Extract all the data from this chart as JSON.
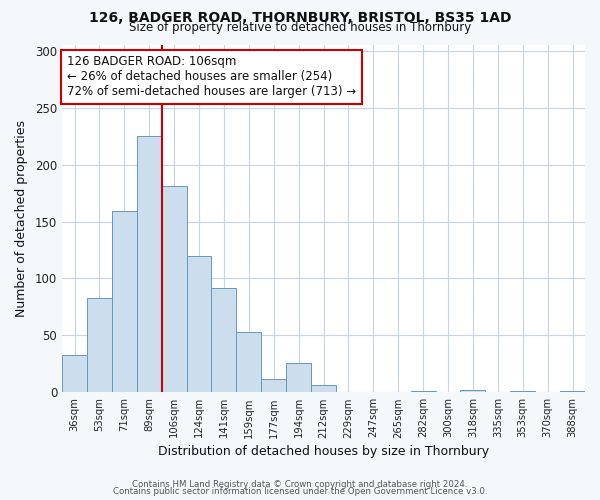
{
  "title": "126, BADGER ROAD, THORNBURY, BRISTOL, BS35 1AD",
  "subtitle": "Size of property relative to detached houses in Thornbury",
  "xlabel": "Distribution of detached houses by size in Thornbury",
  "ylabel": "Number of detached properties",
  "bin_labels": [
    "36sqm",
    "53sqm",
    "71sqm",
    "89sqm",
    "106sqm",
    "124sqm",
    "141sqm",
    "159sqm",
    "177sqm",
    "194sqm",
    "212sqm",
    "229sqm",
    "247sqm",
    "265sqm",
    "282sqm",
    "300sqm",
    "318sqm",
    "335sqm",
    "353sqm",
    "370sqm",
    "388sqm"
  ],
  "bar_heights": [
    33,
    83,
    159,
    225,
    181,
    120,
    92,
    53,
    12,
    26,
    6,
    0,
    0,
    0,
    1,
    0,
    2,
    0,
    1,
    0,
    1
  ],
  "bar_color": "#ccdded",
  "bar_edge_color": "#6699bb",
  "vline_x_index": 3,
  "vline_color": "#cc0000",
  "annotation_text": "126 BADGER ROAD: 106sqm\n← 26% of detached houses are smaller (254)\n72% of semi-detached houses are larger (713) →",
  "annotation_box_color": "#ffffff",
  "annotation_box_edge_color": "#cc0000",
  "ylim": [
    0,
    305
  ],
  "yticks": [
    0,
    50,
    100,
    150,
    200,
    250,
    300
  ],
  "footer1": "Contains HM Land Registry data © Crown copyright and database right 2024.",
  "footer2": "Contains public sector information licensed under the Open Government Licence v3.0.",
  "background_color": "#f5f8fb",
  "plot_bg_color": "#ffffff",
  "grid_color": "#c8d4e0"
}
